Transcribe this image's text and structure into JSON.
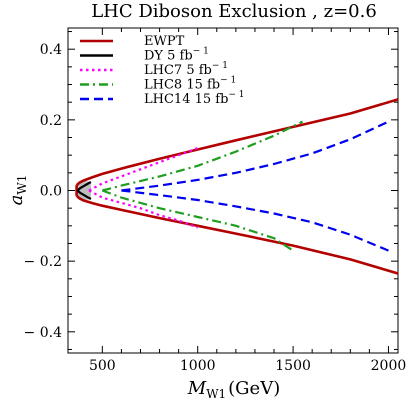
{
  "chart_data": {
    "type": "line",
    "title": "LHC Diboson Exclusion , z=0.6",
    "xlabel": "M_W1 (GeV)",
    "ylabel": "a_W1",
    "xlabel_parts": {
      "main": "M",
      "sub": "W1",
      "unit": "(GeV)"
    },
    "ylabel_parts": {
      "main": "a",
      "sub": "W1"
    },
    "xlim": [
      320,
      2050
    ],
    "ylim": [
      -0.46,
      0.46
    ],
    "x_ticks": [
      500,
      1000,
      1500,
      2000
    ],
    "x_tick_labels": [
      "500",
      "1000",
      "1500",
      "2000"
    ],
    "y_ticks": [
      -0.4,
      -0.2,
      0.0,
      0.2,
      0.4
    ],
    "y_tick_labels": [
      "− 0.4",
      "− 0.2",
      "0.0",
      "0.2",
      "0.4"
    ],
    "grid": false,
    "legend_position": "top-left",
    "series": [
      {
        "name": "EWPT",
        "color": "#b30000",
        "dash": "solid",
        "branches": [
          {
            "x": [
              365,
              380,
              400,
              450,
              500,
              600,
              800,
              1000,
              1200,
              1500,
              1800,
              2050
            ],
            "y": [
              0.015,
              0.022,
              0.028,
              0.038,
              0.047,
              0.062,
              0.09,
              0.116,
              0.142,
              0.18,
              0.218,
              0.258
            ]
          },
          {
            "x": [
              365,
              380,
              400,
              450,
              500,
              600,
              800,
              1000,
              1200,
              1500,
              1800,
              2050
            ],
            "y": [
              -0.015,
              -0.022,
              -0.028,
              -0.036,
              -0.043,
              -0.055,
              -0.078,
              -0.1,
              -0.122,
              -0.156,
              -0.195,
              -0.235
            ]
          },
          {
            "x": [
              365,
              365
            ],
            "y": [
              -0.015,
              0.015
            ]
          }
        ]
      },
      {
        "name": "DY 5 fb⁻¹",
        "label_main": "DY 5",
        "label_unit": "fb",
        "label_sup": "− 1",
        "color": "#000000",
        "dash": "solid",
        "branches": [
          {
            "x": [
              440,
              420,
              400,
              385,
              376,
              372,
              376,
              385,
              400,
              420,
              440
            ],
            "y": [
              0.024,
              0.018,
              0.012,
              0.007,
              0.003,
              0.0,
              -0.003,
              -0.007,
              -0.012,
              -0.018,
              -0.024
            ]
          }
        ]
      },
      {
        "name": "LHC7 5 fb⁻¹",
        "label_main": "LHC7  5",
        "label_unit": "fb",
        "label_sup": "− 1",
        "color": "#ff00ff",
        "dash": "dot",
        "branches": [
          {
            "x": [
              430,
              500,
              600,
              700,
              800,
              900,
              1000
            ],
            "y": [
              0.0,
              0.02,
              0.04,
              0.06,
              0.08,
              0.1,
              0.12
            ]
          },
          {
            "x": [
              430,
              500,
              600,
              700,
              800,
              900,
              1000
            ],
            "y": [
              0.0,
              -0.02,
              -0.035,
              -0.05,
              -0.07,
              -0.085,
              -0.105
            ]
          }
        ]
      },
      {
        "name": "LHC8 15 fb⁻¹",
        "label_main": "LHC8  15",
        "label_unit": "fb",
        "label_sup": "− 1",
        "color": "#1f9e1f",
        "dash": "dashdot",
        "branches": [
          {
            "x": [
              500,
              600,
              800,
              1000,
              1200,
              1400,
              1550
            ],
            "y": [
              0.0,
              0.014,
              0.04,
              0.07,
              0.11,
              0.155,
              0.195
            ]
          },
          {
            "x": [
              500,
              600,
              800,
              1000,
              1200,
              1400,
              1500
            ],
            "y": [
              0.0,
              -0.02,
              -0.05,
              -0.075,
              -0.1,
              -0.135,
              -0.17
            ]
          }
        ]
      },
      {
        "name": "LHC14 15 fb⁻¹",
        "label_main": "LHC14  15",
        "label_unit": "fb",
        "label_sup": "− 1",
        "color": "#0000ee",
        "dash": "dash",
        "branches": [
          {
            "x": [
              600,
              800,
              1000,
              1200,
              1400,
              1600,
              1800,
              2000
            ],
            "y": [
              0.0,
              0.014,
              0.03,
              0.05,
              0.075,
              0.105,
              0.145,
              0.195
            ]
          },
          {
            "x": [
              600,
              800,
              1000,
              1200,
              1400,
              1600,
              1800,
              2000
            ],
            "y": [
              0.0,
              -0.013,
              -0.027,
              -0.045,
              -0.065,
              -0.09,
              -0.125,
              -0.17
            ]
          }
        ]
      }
    ],
    "excluded_region": {
      "fill": "#bdbdbd",
      "upper": {
        "x": [
          365,
          380,
          400,
          440
        ],
        "y": [
          0.015,
          0.022,
          0.028,
          0.024
        ]
      },
      "lower": {
        "x": [
          440,
          400,
          380,
          365
        ],
        "y": [
          -0.024,
          -0.028,
          -0.022,
          -0.015
        ]
      }
    }
  }
}
